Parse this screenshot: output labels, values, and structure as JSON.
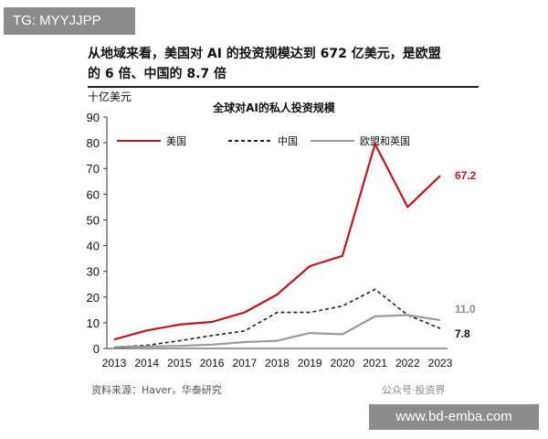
{
  "watermark_top": "TG: MYYJJPP",
  "headline": {
    "line1": "从地域来看，美国对 AI 的投资规模达到 672 亿美元，是欧盟",
    "line2": "的 6 倍、中国的 8.7 倍"
  },
  "source": "资料来源：Haver，华泰研究",
  "logo_text": "公众号·投资界",
  "watermark_bottom": "www.bd-emba.com",
  "colors": {
    "us": "#c0161c",
    "china": "#222222",
    "eu_uk": "#9a9a9a"
  },
  "chart_data": {
    "type": "line",
    "title": "全球对AI的私人投资规模",
    "ylabel": "十亿美元",
    "xlabel": "",
    "ylim": [
      0,
      90
    ],
    "yticks": [
      0,
      10,
      20,
      30,
      40,
      50,
      60,
      70,
      80,
      90
    ],
    "categories": [
      "2013",
      "2014",
      "2015",
      "2016",
      "2017",
      "2018",
      "2019",
      "2020",
      "2021",
      "2022",
      "2023"
    ],
    "legend_position": "top",
    "grid": false,
    "series": [
      {
        "name": "美国",
        "style": "solid",
        "color": "#c0161c",
        "values": [
          3.5,
          7,
          9.3,
          10.3,
          14,
          21,
          32,
          36,
          79.5,
          55,
          67.2
        ],
        "end_label": "67.2"
      },
      {
        "name": "中国",
        "style": "dashed",
        "color": "#222222",
        "values": [
          0.5,
          1.2,
          3,
          5,
          6.8,
          14,
          14,
          16.5,
          23,
          13,
          7.8
        ],
        "end_label": "7.8"
      },
      {
        "name": "欧盟和英国",
        "style": "solid",
        "color": "#9a9a9a",
        "values": [
          0.5,
          0.8,
          1,
          1.5,
          2.5,
          3,
          6,
          5.5,
          12.5,
          13,
          11
        ],
        "end_label": "11.0"
      }
    ]
  }
}
